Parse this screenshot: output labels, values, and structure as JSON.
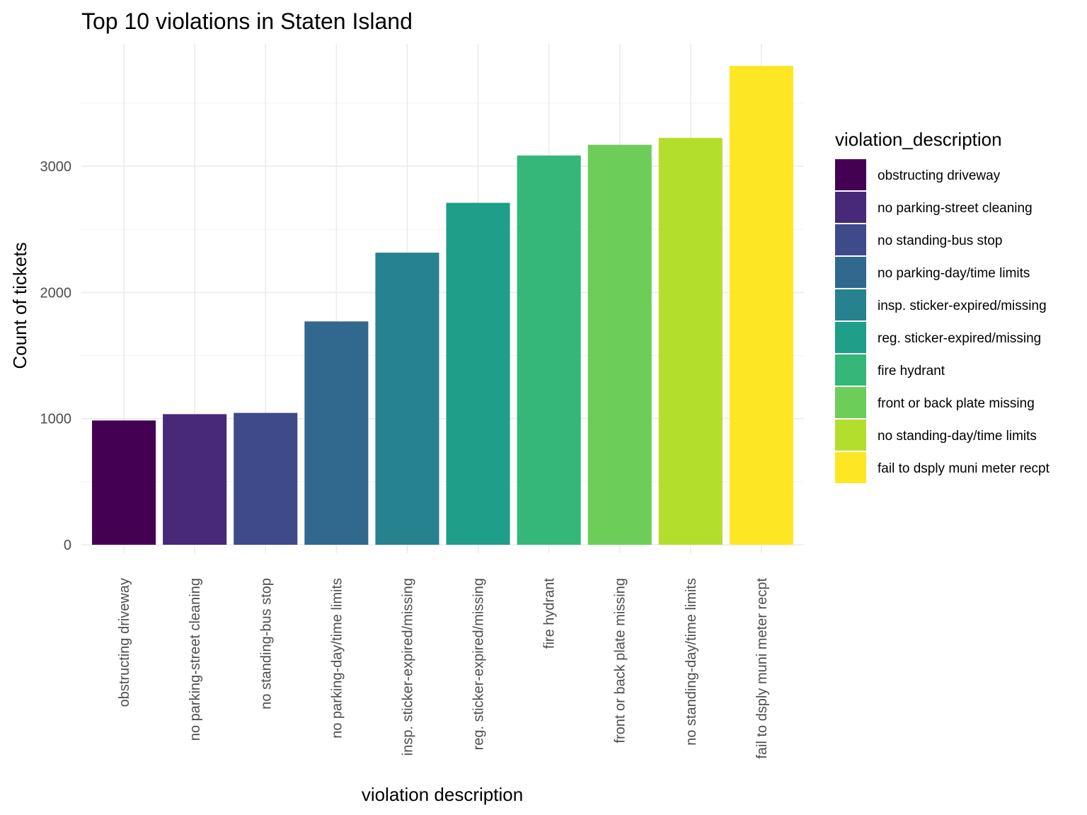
{
  "chart_data": {
    "type": "bar",
    "title": "Top 10 violations in Staten Island",
    "xlabel": "violation description",
    "ylabel": "Count of tickets",
    "categories": [
      "obstructing driveway",
      "no parking-street cleaning",
      "no standing-bus stop",
      "no parking-day/time limits",
      "insp. sticker-expired/missing",
      "reg. sticker-expired/missing",
      "fire hydrant",
      "front or back plate missing",
      "no standing-day/time limits",
      "fail to dsply muni meter recpt"
    ],
    "values": [
      985,
      1035,
      1045,
      1770,
      2315,
      2710,
      3085,
      3170,
      3225,
      3795
    ],
    "colors": [
      "#440154",
      "#482878",
      "#3E4A89",
      "#31688E",
      "#26828E",
      "#1F9E89",
      "#35B779",
      "#6DCD59",
      "#B4DE2C",
      "#FDE725"
    ],
    "yticks": [
      0,
      1000,
      2000,
      3000
    ],
    "ytick_labels": [
      "0",
      "1000",
      "2000",
      "3000"
    ],
    "ylim": [
      0,
      3795
    ],
    "grid": true,
    "legend": {
      "title": "violation_description",
      "position": "right"
    }
  }
}
